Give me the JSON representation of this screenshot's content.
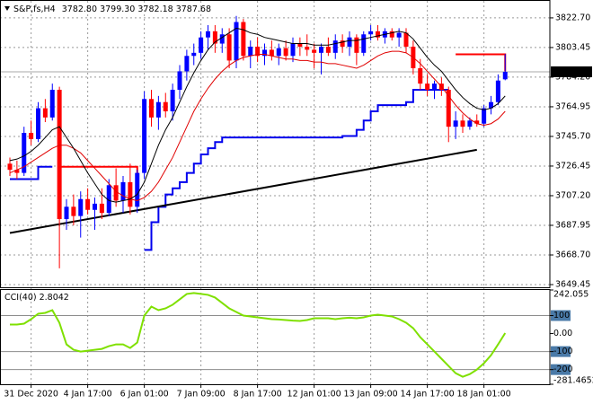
{
  "chart_data": {
    "type": "candlestick",
    "title": "S&P,fs,H4",
    "last_labels": [
      "3782.80",
      "3799.30",
      "3782.18",
      "3787.68"
    ],
    "up_color": "#0000ff",
    "down_color": "#ff0000",
    "grid": true,
    "ylim": [
      3647.7,
      3831.4
    ],
    "yticks": [
      {
        "value": 3822.7,
        "label": "3822.70"
      },
      3803.45,
      {
        "value": 3784.2,
        "label": "3784.20"
      },
      3764.95,
      {
        "value": 3745.7,
        "label": "3745.70"
      },
      3726.45,
      {
        "value": 3707.2,
        "label": "3707.20"
      },
      3687.95,
      {
        "value": 3668.7,
        "label": "3668.70"
      },
      3649.45
    ],
    "categories": [
      null,
      null,
      null,
      "31 Dec 2020",
      null,
      null,
      null,
      null,
      null,
      null,
      null,
      "4 Jan 17:00",
      null,
      null,
      null,
      null,
      null,
      null,
      null,
      "6 Jan 01:00",
      null,
      null,
      null,
      null,
      null,
      null,
      null,
      "7 Jan 09:00",
      null,
      null,
      null,
      null,
      null,
      null,
      null,
      "8 Jan 17:00",
      null,
      null,
      null,
      null,
      null,
      null,
      null,
      "12 Jan 01:00",
      null,
      null,
      null,
      null,
      null,
      null,
      null,
      "13 Jan 09:00",
      null,
      null,
      null,
      null,
      null,
      null,
      null,
      "14 Jan 17:00",
      null,
      null,
      null,
      null,
      null,
      null,
      null,
      "18 Jan 01:00",
      null,
      null,
      null
    ],
    "open": [
      3728,
      3724,
      3722,
      3748,
      3744,
      3764,
      3758,
      3776,
      3692,
      3700,
      3694,
      3705,
      3698,
      3702,
      3696,
      3714,
      3704,
      3716,
      3700,
      3722,
      3770,
      3758,
      3768,
      3762,
      3776,
      3788,
      3798,
      3800,
      3810,
      3814,
      3806,
      3812,
      3795,
      3820,
      3798,
      3804,
      3798,
      3802,
      3798,
      3803,
      3798,
      3806,
      3804,
      3802,
      3800,
      3804,
      3800,
      3808,
      3804,
      3810,
      3800,
      3812,
      3814,
      3810,
      3814,
      3810,
      3813,
      3804,
      3790,
      3780,
      3776,
      3780,
      3776,
      3752,
      3756,
      3752,
      3756,
      3754,
      3764,
      3768,
      3782.8
    ],
    "high": [
      3732,
      3730,
      3752,
      3756,
      3768,
      3770,
      3780,
      3778,
      3705,
      3708,
      3710,
      3712,
      3706,
      3712,
      3718,
      3725,
      3720,
      3728,
      3724,
      3775,
      3776,
      3772,
      3774,
      3780,
      3792,
      3802,
      3806,
      3814,
      3818,
      3818,
      3816,
      3816,
      3824,
      3822,
      3808,
      3810,
      3806,
      3808,
      3806,
      3808,
      3810,
      3810,
      3812,
      3806,
      3806,
      3810,
      3812,
      3812,
      3814,
      3812,
      3814,
      3818,
      3818,
      3816,
      3816,
      3816,
      3816,
      3808,
      3796,
      3786,
      3782,
      3784,
      3778,
      3762,
      3760,
      3758,
      3760,
      3766,
      3772,
      3786,
      3799.3
    ],
    "low": [
      3720,
      3718,
      3720,
      3740,
      3742,
      3755,
      3756,
      3660,
      3685,
      3688,
      3680,
      3695,
      3685,
      3692,
      3694,
      3700,
      3696,
      3695,
      3696,
      3718,
      3752,
      3750,
      3758,
      3756,
      3770,
      3782,
      3792,
      3796,
      3802,
      3800,
      3800,
      3790,
      3790,
      3795,
      3790,
      3794,
      3792,
      3795,
      3792,
      3795,
      3794,
      3798,
      3798,
      3790,
      3786,
      3798,
      3796,
      3800,
      3798,
      3792,
      3798,
      3808,
      3808,
      3806,
      3808,
      3804,
      3800,
      3786,
      3776,
      3772,
      3770,
      3772,
      3742,
      3744,
      3748,
      3750,
      3752,
      3752,
      3760,
      3766,
      3782.18
    ],
    "close": [
      3724,
      3722,
      3748,
      3744,
      3764,
      3758,
      3776,
      3692,
      3700,
      3694,
      3705,
      3698,
      3702,
      3696,
      3714,
      3704,
      3716,
      3700,
      3722,
      3770,
      3758,
      3768,
      3762,
      3776,
      3788,
      3798,
      3800,
      3810,
      3814,
      3806,
      3812,
      3795,
      3820,
      3798,
      3804,
      3798,
      3802,
      3798,
      3803,
      3798,
      3806,
      3804,
      3802,
      3800,
      3804,
      3800,
      3808,
      3804,
      3810,
      3800,
      3812,
      3814,
      3810,
      3814,
      3810,
      3813,
      3804,
      3790,
      3780,
      3776,
      3780,
      3776,
      3752,
      3756,
      3752,
      3756,
      3754,
      3764,
      3768,
      3782,
      3787.68
    ],
    "ma_fast": {
      "color": "#000000",
      "values": [
        3730,
        3731,
        3733,
        3736,
        3740,
        3745,
        3750,
        3752,
        3745,
        3738,
        3730,
        3722,
        3715,
        3708,
        3704,
        3703,
        3704,
        3705,
        3708,
        3716,
        3728,
        3740,
        3750,
        3758,
        3768,
        3778,
        3787,
        3795,
        3802,
        3807,
        3810,
        3813,
        3816,
        3815,
        3813,
        3812,
        3810,
        3809,
        3808,
        3807,
        3806,
        3806,
        3806,
        3805,
        3805,
        3805,
        3806,
        3807,
        3808,
        3808,
        3809,
        3810,
        3811,
        3812,
        3813,
        3814,
        3813,
        3809,
        3803,
        3797,
        3792,
        3788,
        3782,
        3776,
        3771,
        3767,
        3764,
        3763,
        3764,
        3767,
        3772
      ]
    },
    "ma_slow": {
      "color": "#e00000",
      "values": [
        3722,
        3724,
        3726,
        3729,
        3732,
        3735,
        3738,
        3740,
        3740,
        3738,
        3735,
        3730,
        3725,
        3720,
        3715,
        3710,
        3707,
        3705,
        3704,
        3706,
        3710,
        3716,
        3724,
        3732,
        3742,
        3752,
        3762,
        3770,
        3777,
        3783,
        3788,
        3792,
        3795,
        3797,
        3798,
        3799,
        3799,
        3798,
        3797,
        3796,
        3796,
        3795,
        3795,
        3794,
        3794,
        3793,
        3793,
        3792,
        3791,
        3790,
        3792,
        3795,
        3798,
        3800,
        3801,
        3801,
        3800,
        3797,
        3793,
        3788,
        3783,
        3778,
        3772,
        3766,
        3761,
        3757,
        3754,
        3753,
        3754,
        3757,
        3762
      ]
    },
    "channel": {
      "color": "#0000ee",
      "values": [
        3718,
        3718,
        3718,
        3718,
        3726,
        3726,
        3726,
        null,
        null,
        null,
        null,
        null,
        null,
        null,
        null,
        null,
        null,
        null,
        null,
        3672,
        3690,
        3700,
        3708,
        3712,
        3716,
        3722,
        3728,
        3734,
        3738,
        3742,
        3745,
        3745,
        3745,
        3745,
        3745,
        3745,
        3745,
        3745,
        3745,
        3745,
        3745,
        3745,
        3745,
        3745,
        3745,
        3745,
        3745,
        3746,
        3746,
        3750,
        3756,
        3762,
        3766,
        3766,
        3766,
        3766,
        3768,
        3776,
        3776,
        3776,
        3776,
        3776,
        3776,
        null,
        null,
        null,
        null,
        null,
        null,
        null,
        null
      ]
    },
    "trendline": {
      "color": "#000000",
      "points": [
        [
          0,
          3683
        ],
        [
          66,
          3737
        ]
      ]
    },
    "levels": {
      "color": "#ff0000",
      "items": [
        {
          "from": 7,
          "to": 18,
          "value": 3726,
          "drop": 3721
        },
        {
          "from": 63,
          "to": 70,
          "value": 3799,
          "drop": 3788
        }
      ]
    },
    "cci": {
      "title": "CCI(40)",
      "color": "#7fe000",
      "ylim": [
        -281.4652,
        242.055
      ],
      "yticks": [
        242.055,
        100,
        {
          "value": 0,
          "label": "0.00"
        },
        -100,
        -200,
        -281.4652
      ],
      "levels": [
        100,
        -100,
        -200
      ],
      "values": [
        50,
        50,
        55,
        80,
        110,
        115,
        130,
        60,
        -60,
        -90,
        -100,
        -95,
        -90,
        -85,
        -70,
        -60,
        -60,
        -80,
        -50,
        100,
        150,
        130,
        140,
        160,
        190,
        220,
        225,
        220,
        215,
        200,
        170,
        140,
        120,
        100,
        95,
        90,
        85,
        80,
        78,
        75,
        72,
        70,
        75,
        85,
        85,
        85,
        80,
        85,
        88,
        85,
        90,
        100,
        105,
        100,
        95,
        80,
        60,
        30,
        -20,
        -60,
        -100,
        -140,
        -180,
        -220,
        -240,
        -225,
        -200,
        -165,
        -120,
        -60,
        2.8042
      ]
    }
  }
}
